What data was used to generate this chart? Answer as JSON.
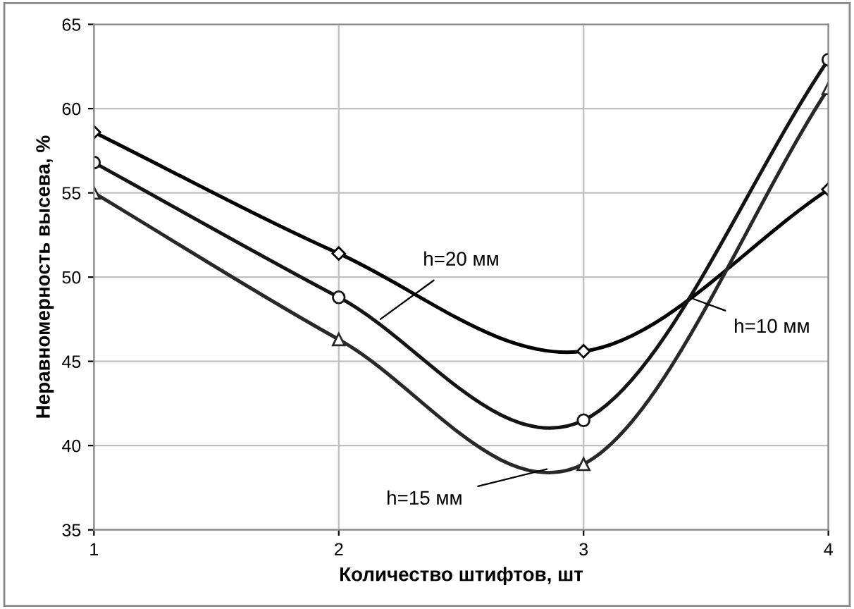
{
  "chart_data": {
    "type": "line",
    "xlabel": "Количество штифтов, шт",
    "ylabel": "Неравномерность высева, %",
    "x": [
      1,
      2,
      3,
      4
    ],
    "series": [
      {
        "color": "#000000",
        "marker": "diamond",
        "values": [
          58.6,
          51.4,
          45.6,
          55.2
        ]
      },
      {
        "color": "#141414",
        "marker": "circle",
        "values": [
          56.8,
          48.8,
          41.5,
          62.9
        ]
      },
      {
        "color": "#282828",
        "marker": "triangle",
        "values": [
          55.0,
          46.3,
          38.9,
          61.2
        ]
      }
    ],
    "annotations": [
      {
        "text": "h=20 мм",
        "x": 2.17,
        "y": 47.5
      },
      {
        "text": "h=10 мм",
        "x": 3.45,
        "y": 48.7
      },
      {
        "text": "h=15 мм",
        "x": 2.85,
        "y": 38.6
      }
    ],
    "xlim": [
      1,
      4
    ],
    "xticks": [
      1,
      2,
      3,
      4
    ],
    "ylim": [
      35,
      65
    ],
    "yticks": [
      35,
      40,
      45,
      50,
      55,
      60,
      65
    ],
    "grid": true,
    "line_style": "solid"
  }
}
